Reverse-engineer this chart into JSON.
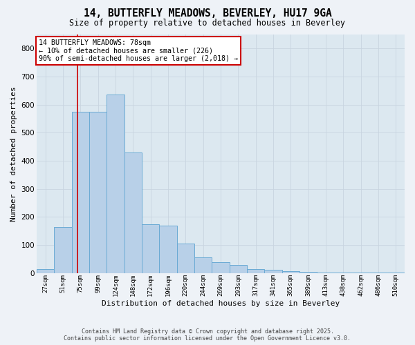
{
  "title1": "14, BUTTERFLY MEADOWS, BEVERLEY, HU17 9GA",
  "title2": "Size of property relative to detached houses in Beverley",
  "xlabel": "Distribution of detached houses by size in Beverley",
  "ylabel": "Number of detached properties",
  "categories": [
    "27sqm",
    "51sqm",
    "75sqm",
    "99sqm",
    "124sqm",
    "148sqm",
    "172sqm",
    "196sqm",
    "220sqm",
    "244sqm",
    "269sqm",
    "293sqm",
    "317sqm",
    "341sqm",
    "365sqm",
    "389sqm",
    "413sqm",
    "438sqm",
    "462sqm",
    "486sqm",
    "510sqm"
  ],
  "values": [
    15,
    165,
    575,
    575,
    635,
    430,
    175,
    170,
    105,
    55,
    40,
    30,
    15,
    12,
    8,
    5,
    3,
    2,
    1,
    1,
    2
  ],
  "bar_color": "#b8d0e8",
  "bar_edge_color": "#6aaad4",
  "vline_x": 1.85,
  "vline_color": "#cc0000",
  "annotation_text": "14 BUTTERFLY MEADOWS: 78sqm\n← 10% of detached houses are smaller (226)\n90% of semi-detached houses are larger (2,018) →",
  "annotation_box_color": "#ffffff",
  "annotation_box_edge": "#cc0000",
  "ylim": [
    0,
    850
  ],
  "yticks": [
    0,
    100,
    200,
    300,
    400,
    500,
    600,
    700,
    800
  ],
  "grid_color": "#c8d4e0",
  "bg_color": "#dce8f0",
  "fig_bg_color": "#eef2f7",
  "footer1": "Contains HM Land Registry data © Crown copyright and database right 2025.",
  "footer2": "Contains public sector information licensed under the Open Government Licence v3.0."
}
